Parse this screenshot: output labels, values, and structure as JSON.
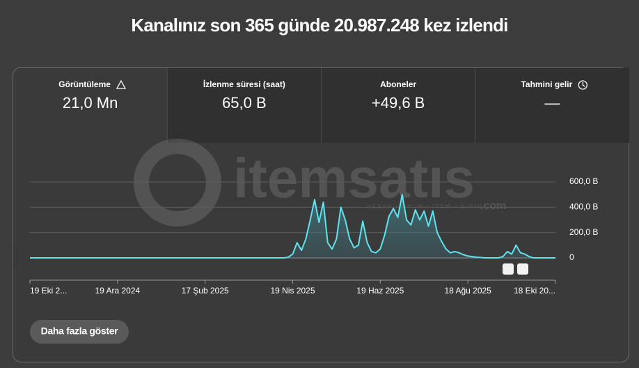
{
  "header": {
    "title": "Kanalınız son 365 günde 20.987.248 kez izlendi"
  },
  "metrics": [
    {
      "label": "Görüntüleme",
      "value": "21,0 Mn"
    },
    {
      "label": "İzlenme süresi (saat)",
      "value": "65,0 B"
    },
    {
      "label": "Aboneler",
      "value": "+49,6 B"
    },
    {
      "label": "Tahmini gelir",
      "value": "—"
    }
  ],
  "watermark": {
    "brand": "itemsatıs",
    "tagline": "HESAP • OYUN • İTEM • E-PIN",
    "domain": ".com"
  },
  "chart_data": {
    "type": "line",
    "color": "#5fe3ee",
    "grid": true,
    "categories": [
      "19 Eki 2...",
      null,
      null,
      null,
      null,
      null,
      null,
      null,
      null,
      null,
      null,
      null,
      null,
      null,
      null,
      null,
      null,
      null,
      null,
      null,
      "19 Ara 2024",
      null,
      null,
      null,
      null,
      null,
      null,
      null,
      null,
      null,
      null,
      null,
      null,
      null,
      null,
      null,
      null,
      null,
      null,
      null,
      "17 Şub 2025",
      null,
      null,
      null,
      null,
      null,
      null,
      null,
      null,
      null,
      null,
      null,
      null,
      null,
      null,
      null,
      null,
      null,
      null,
      null,
      "19 Nis 2025",
      null,
      null,
      null,
      null,
      null,
      null,
      null,
      null,
      null,
      null,
      null,
      null,
      null,
      null,
      null,
      null,
      null,
      null,
      null,
      "19 Haz 2025",
      null,
      null,
      null,
      null,
      null,
      null,
      null,
      null,
      null,
      null,
      null,
      null,
      null,
      null,
      null,
      null,
      null,
      null,
      null,
      "18 Ağu 2025",
      null,
      null,
      null,
      null,
      null,
      null,
      null,
      null,
      null,
      null,
      null,
      null,
      null,
      null,
      null,
      null,
      null,
      null,
      null,
      "18 Eki 20..."
    ],
    "values": [
      0,
      0,
      0,
      0,
      0,
      0,
      0,
      0,
      0,
      0,
      0,
      0,
      0,
      0,
      0,
      0,
      0,
      0,
      0,
      0,
      0,
      0,
      0,
      0,
      0,
      0,
      0,
      0,
      0,
      0,
      0,
      0,
      0,
      0,
      0,
      0,
      0,
      0,
      0,
      0,
      0,
      0,
      0,
      0,
      0,
      0,
      0,
      0,
      0,
      0,
      0,
      0,
      0,
      0,
      0,
      0,
      0,
      0,
      0,
      5000,
      30000,
      120000,
      60000,
      150000,
      300000,
      460000,
      280000,
      440000,
      120000,
      70000,
      150000,
      400000,
      300000,
      150000,
      80000,
      100000,
      290000,
      120000,
      50000,
      40000,
      70000,
      180000,
      330000,
      390000,
      320000,
      500000,
      300000,
      260000,
      380000,
      300000,
      370000,
      250000,
      370000,
      200000,
      130000,
      70000,
      40000,
      50000,
      40000,
      25000,
      15000,
      10000,
      5000,
      3000,
      0,
      0,
      0,
      0,
      10000,
      50000,
      30000,
      100000,
      40000,
      30000,
      10000,
      0,
      0,
      0,
      0,
      0,
      0
    ],
    "ylim": [
      0,
      600000
    ],
    "yticks": [
      0,
      {
        "value": 200000,
        "label": "200,0 B"
      },
      {
        "value": 400000,
        "label": "400,0 B"
      },
      {
        "value": 600000,
        "label": "600,0 B"
      }
    ]
  },
  "button": {
    "label": "Daha fazla göster"
  }
}
